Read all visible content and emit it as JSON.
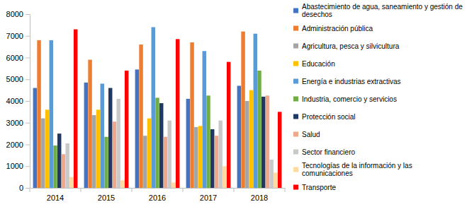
{
  "chart_data": {
    "type": "bar",
    "categories": [
      "2014",
      "2015",
      "2016",
      "2017",
      "2018"
    ],
    "series": [
      {
        "name": "Abastecimiento de agua, saneamiento y gestión de desechos",
        "color": "#4472C4",
        "values": [
          4600,
          4850,
          5450,
          4100,
          4700
        ]
      },
      {
        "name": "Administración pública",
        "color": "#ED7D31",
        "values": [
          6800,
          5900,
          6600,
          6700,
          7200
        ]
      },
      {
        "name": "Agricultura, pesca y silvicultura",
        "color": "#A5A5A5",
        "values": [
          3200,
          3350,
          2400,
          2800,
          4000
        ]
      },
      {
        "name": "Educación",
        "color": "#FFC000",
        "values": [
          3600,
          3600,
          3200,
          2850,
          4500
        ]
      },
      {
        "name": "Energía e industrias extractivas",
        "color": "#5B9BD5",
        "values": [
          6800,
          4800,
          7400,
          6300,
          7100
        ]
      },
      {
        "name": "Industria, comercio y servicios",
        "color": "#70AD47",
        "values": [
          1950,
          2350,
          4150,
          4250,
          5400
        ]
      },
      {
        "name": "Protección social",
        "color": "#1F3864",
        "values": [
          2500,
          4600,
          3900,
          2700,
          4200
        ]
      },
      {
        "name": "Salud",
        "color": "#F1A78A",
        "values": [
          1550,
          3050,
          2350,
          2400,
          4250
        ]
      },
      {
        "name": "Sector financiero",
        "color": "#C9C9C9",
        "values": [
          2050,
          4100,
          3100,
          3100,
          1300
        ]
      },
      {
        "name": "Tecnologías de la información y las comunicaciones",
        "color": "#FFD9A0",
        "values": [
          500,
          350,
          250,
          1000,
          700
        ]
      },
      {
        "name": "Transporte",
        "color": "#FF0000",
        "values": [
          7300,
          5400,
          6850,
          5800,
          3500
        ]
      }
    ],
    "ylim": [
      0,
      8000
    ],
    "yticks": [
      0,
      1000,
      2000,
      3000,
      4000,
      5000,
      6000,
      7000,
      8000
    ],
    "grid": false,
    "legend": "right"
  }
}
